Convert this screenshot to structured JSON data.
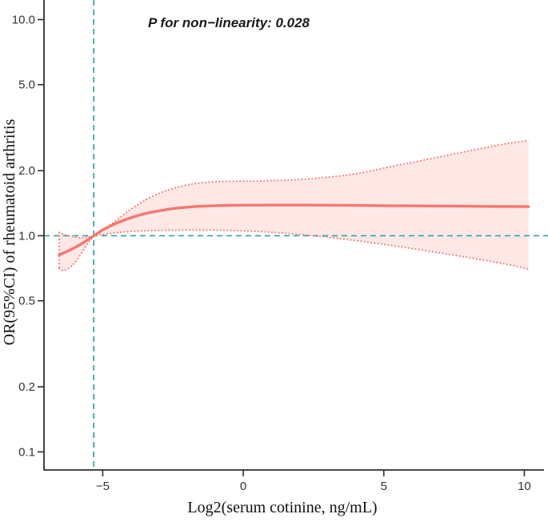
{
  "chart_data": {
    "type": "line",
    "title": "",
    "xlabel": "Log2(serum cotinine, ng/mL)",
    "ylabel": "OR(95%CI) of rheumatoid arthritis",
    "annotation": "P for non−linearity: 0.028",
    "y_scale": "log10",
    "grid": "off",
    "legend": "none",
    "xlim": [
      -7.09,
      10.7
    ],
    "ylim": [
      0.0825,
      12.32
    ],
    "x_ticks": [
      {
        "value": -5,
        "label": "−5"
      },
      {
        "value": 0,
        "label": "0"
      },
      {
        "value": 5,
        "label": "5"
      },
      {
        "value": 10,
        "label": "10"
      }
    ],
    "y_ticks": [
      {
        "value": 10.0,
        "label": "10.0"
      },
      {
        "value": 5.0,
        "label": "5.0"
      },
      {
        "value": 2.0,
        "label": "2.0"
      },
      {
        "value": 1.0,
        "label": "1.0"
      },
      {
        "value": 0.5,
        "label": "0.5"
      },
      {
        "value": 0.2,
        "label": "0.2"
      },
      {
        "value": 0.1,
        "label": "0.1"
      }
    ],
    "reference_lines": {
      "h": 1.0,
      "v": -5.32
    },
    "series": [
      {
        "name": "fit",
        "x": [
          -6.55,
          -6.2,
          -5.9,
          -5.6,
          -5.32,
          -5.0,
          -4.7,
          -4.4,
          -4.1,
          -3.8,
          -3.5,
          -3.2,
          -2.9,
          -2.6,
          -2.3,
          -2.0,
          -1.5,
          -1.0,
          -0.5,
          0,
          1,
          2,
          3,
          4,
          5,
          6,
          7,
          8,
          9,
          10.15
        ],
        "y": [
          0.815,
          0.855,
          0.895,
          0.945,
          1.0,
          1.065,
          1.115,
          1.16,
          1.2,
          1.235,
          1.265,
          1.29,
          1.31,
          1.33,
          1.345,
          1.355,
          1.37,
          1.378,
          1.382,
          1.384,
          1.386,
          1.386,
          1.384,
          1.381,
          1.378,
          1.375,
          1.372,
          1.369,
          1.366,
          1.363
        ]
      },
      {
        "name": "upper95",
        "x": [
          -6.55,
          -6.3,
          -6.0,
          -5.7,
          -5.32,
          -5.0,
          -4.7,
          -4.4,
          -4.1,
          -3.8,
          -3.5,
          -3.2,
          -2.9,
          -2.6,
          -2.3,
          -2.0,
          -1.5,
          -1.0,
          -0.5,
          0,
          0.5,
          1,
          1.5,
          2,
          2.5,
          3,
          3.5,
          4,
          4.5,
          5,
          5.5,
          6,
          6.5,
          7,
          7.5,
          8,
          8.5,
          9,
          9.5,
          10.15
        ],
        "y": [
          1.035,
          1.005,
          0.985,
          0.978,
          1.0,
          1.06,
          1.13,
          1.21,
          1.3,
          1.38,
          1.46,
          1.53,
          1.59,
          1.64,
          1.68,
          1.72,
          1.76,
          1.78,
          1.785,
          1.79,
          1.79,
          1.8,
          1.805,
          1.82,
          1.84,
          1.865,
          1.895,
          1.935,
          1.99,
          2.055,
          2.12,
          2.18,
          2.25,
          2.32,
          2.39,
          2.465,
          2.54,
          2.615,
          2.685,
          2.76
        ]
      },
      {
        "name": "lower95",
        "x": [
          -6.55,
          -6.43,
          -6.25,
          -6.05,
          -5.85,
          -5.65,
          -5.32,
          -5.0,
          -4.6,
          -4.2,
          -3.8,
          -3.4,
          -3.0,
          -2.5,
          -2.0,
          -1.5,
          -1.0,
          -0.5,
          0,
          0.5,
          1,
          1.5,
          2,
          2.5,
          3,
          3.5,
          4,
          4.5,
          5,
          5.5,
          6,
          6.5,
          7,
          7.5,
          8,
          8.5,
          9,
          9.5,
          10.15
        ],
        "y": [
          0.705,
          0.69,
          0.7,
          0.735,
          0.795,
          0.875,
          1.0,
          1.015,
          1.03,
          1.042,
          1.05,
          1.055,
          1.058,
          1.061,
          1.062,
          1.063,
          1.062,
          1.059,
          1.054,
          1.047,
          1.038,
          1.027,
          1.014,
          1.0,
          0.985,
          0.968,
          0.95,
          0.931,
          0.912,
          0.893,
          0.873,
          0.853,
          0.833,
          0.813,
          0.793,
          0.773,
          0.753,
          0.733,
          0.7
        ]
      }
    ],
    "colors": {
      "line": "#F8766D",
      "band_fill": "rgba(248,118,109,0.17)",
      "reference": "#2BA6A4",
      "axis": "#2e2e2e"
    }
  }
}
